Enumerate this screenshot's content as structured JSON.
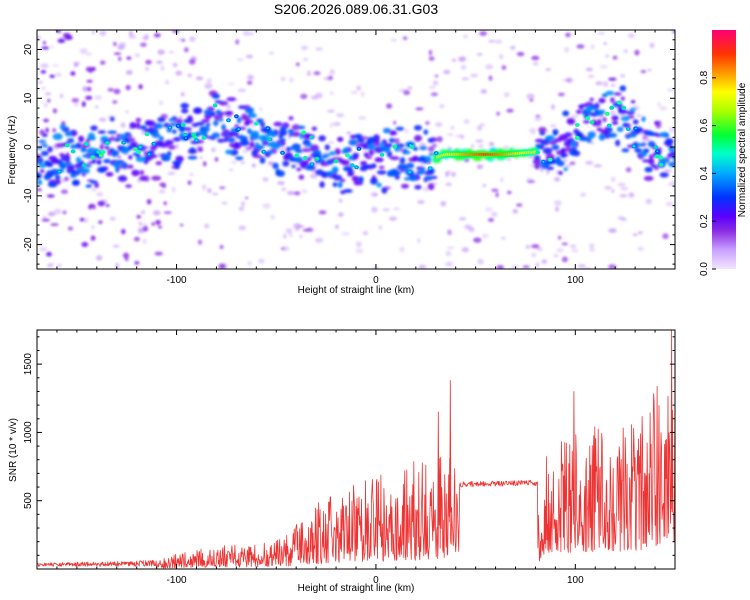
{
  "chart_data": [
    {
      "type": "heatmap",
      "title": "S206.2026.089.06.31.G03",
      "xlabel": "Height of straight line (km)",
      "ylabel": "Frequency (Hz)",
      "xlim": [
        -170,
        150
      ],
      "ylim": [
        -25,
        24
      ],
      "x_ticks": [
        -100,
        0,
        100
      ],
      "x_tick_labels": [
        "-100",
        "0",
        "100"
      ],
      "y_ticks": [
        -20,
        -10,
        0,
        10,
        20
      ],
      "y_tick_labels": [
        "-20",
        "-10",
        "0",
        "10",
        "20"
      ],
      "colorbar": {
        "label": "Normalized spectral amplitude",
        "range": [
          0,
          1
        ],
        "ticks": [
          0.0,
          0.2,
          0.4,
          0.6,
          0.8
        ],
        "tick_labels": [
          "0.0",
          "0.2",
          "0.4",
          "0.6",
          "0.8"
        ],
        "colormap": [
          "#e0c8ff",
          "#8a2be2",
          "#4b00ff",
          "#0033ff",
          "#00ccff",
          "#00ff66",
          "#aaff00",
          "#ffff00",
          "#ff9900",
          "#ff3300",
          "#ff0066"
        ]
      },
      "ridge_x": [
        -170,
        -150,
        -130,
        -110,
        -90,
        -80,
        -70,
        -50,
        -35,
        -20,
        -5,
        10,
        25,
        35,
        50,
        65,
        80,
        95,
        110,
        120,
        135,
        150
      ],
      "ridge_y": [
        -3,
        -2,
        -1,
        0,
        3,
        6,
        4,
        1,
        0,
        -4,
        -3,
        -2,
        -3,
        -1.5,
        -1.5,
        -1.5,
        -1,
        1,
        5,
        8,
        0,
        -3
      ]
    },
    {
      "type": "line",
      "xlabel": "Height of straight line (km)",
      "ylabel": "SNR (10 * v/v)",
      "xlim": [
        -170,
        150
      ],
      "ylim": [
        0,
        1750
      ],
      "x_ticks": [
        -100,
        0,
        100
      ],
      "x_tick_labels": [
        "-100",
        "0",
        "100"
      ],
      "y_ticks": [
        500,
        1000,
        1500
      ],
      "y_tick_labels": [
        "500",
        "1000",
        "1500"
      ],
      "color": "#ee3333",
      "envelope_x": [
        -170,
        -130,
        -110,
        -100,
        -80,
        -60,
        -45,
        -30,
        -20,
        -10,
        0,
        10,
        20,
        30,
        40,
        42,
        80,
        82,
        85,
        95,
        110,
        130,
        145,
        150
      ],
      "envelope_y": [
        40,
        50,
        60,
        110,
        170,
        180,
        250,
        480,
        560,
        620,
        700,
        720,
        800,
        870,
        900,
        620,
        630,
        620,
        900,
        1000,
        1050,
        1100,
        1500,
        1400
      ],
      "spikes_x": [
        37,
        148,
        99,
        31
      ],
      "spikes_y": [
        1380,
        1750,
        1300,
        1150
      ]
    }
  ]
}
